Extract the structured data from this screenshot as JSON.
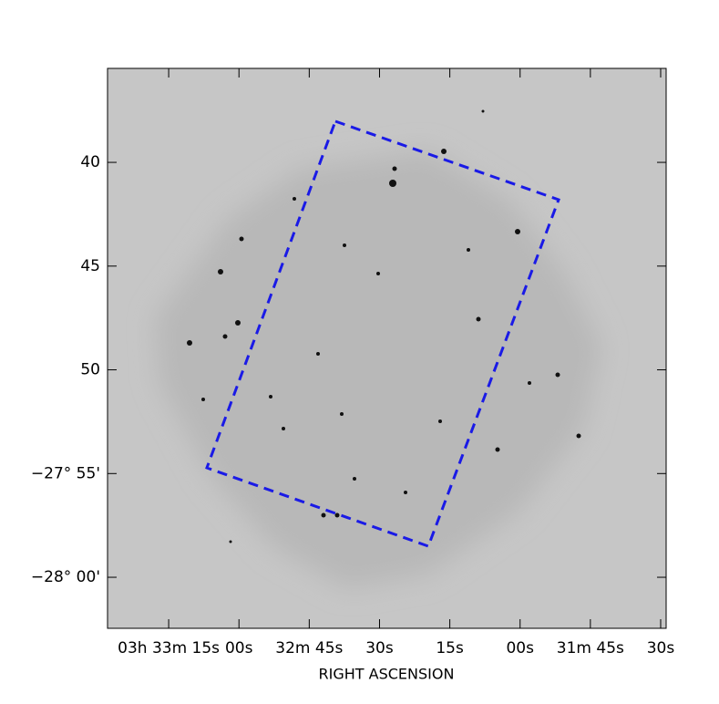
{
  "chart_data": {
    "type": "image",
    "xlabel": "RIGHT ASCENSION",
    "xlim": [
      148.05,
      28.83
    ],
    "xticks": [
      {
        "value": 135,
        "label": "03h 33m 15s"
      },
      {
        "value": 120,
        "label": "00s"
      },
      {
        "value": 105,
        "label": "32m 45s"
      },
      {
        "value": 90,
        "label": "30s"
      },
      {
        "value": 75,
        "label": "15s"
      },
      {
        "value": 60,
        "label": "00s"
      },
      {
        "value": 45,
        "label": "31m 45s"
      },
      {
        "value": 30,
        "label": "30s"
      }
    ],
    "ylim": [
      62.46,
      35.47
    ],
    "yticks": [
      40,
      45,
      50,
      {
        "value": 55,
        "label": "−27° 55'"
      },
      {
        "value": 60,
        "label": "−28° 00'"
      }
    ]
  }
}
